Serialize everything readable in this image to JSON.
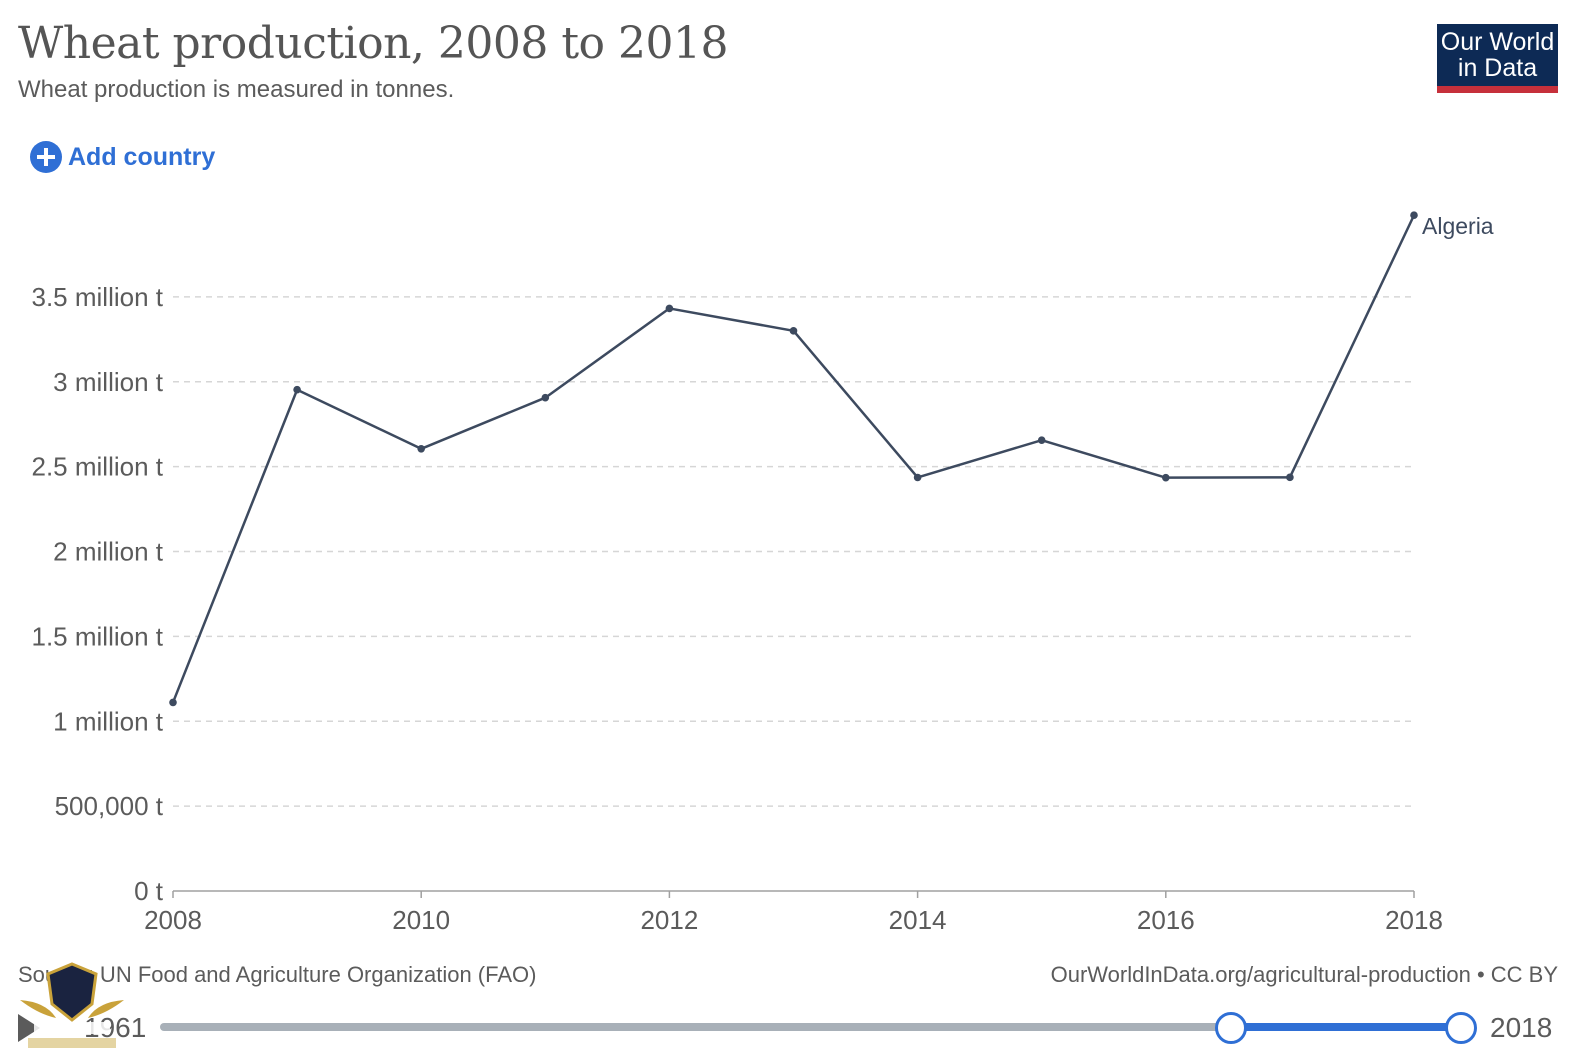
{
  "header": {
    "title": "Wheat production, 2008 to 2018",
    "subtitle": "Wheat production is measured in tonnes.",
    "logo_line1": "Our World",
    "logo_line2": "in Data"
  },
  "controls": {
    "add_country": "Add country"
  },
  "footer": {
    "source": "Source: UN Food and Agriculture Organization (FAO)",
    "credit": "OurWorldInData.org/agricultural-production • CC BY"
  },
  "timeline": {
    "start_label": "1961",
    "end_label": "2018"
  },
  "colors": {
    "line": "#3d4a5f",
    "accent": "#2f6fd5",
    "logo_bg": "#0d2a55",
    "logo_bar": "#c6303b"
  },
  "chart_data": {
    "type": "line",
    "x": [
      2008,
      2009,
      2010,
      2011,
      2012,
      2013,
      2014,
      2015,
      2016,
      2017,
      2018
    ],
    "series": [
      {
        "name": "Algeria",
        "values": [
          1111000,
          2953000,
          2605000,
          2906000,
          3432000,
          3300000,
          2436000,
          2656000,
          2435000,
          2437000,
          3981000
        ]
      }
    ],
    "ylim": [
      0,
      4000000
    ],
    "y_ticks": [
      0,
      500000,
      1000000,
      1500000,
      2000000,
      2500000,
      3000000,
      3500000
    ],
    "y_tick_labels": [
      "0 t",
      "500,000 t",
      "1 million t",
      "1.5 million t",
      "2 million t",
      "2.5 million t",
      "3 million t",
      "3.5 million t"
    ],
    "x_ticks": [
      2008,
      2010,
      2012,
      2014,
      2016,
      2018
    ],
    "x_tick_labels": [
      "2008",
      "2010",
      "2012",
      "2014",
      "2016",
      "2018"
    ],
    "grid": "horizontal dashed",
    "legend": "inline label at line end"
  }
}
